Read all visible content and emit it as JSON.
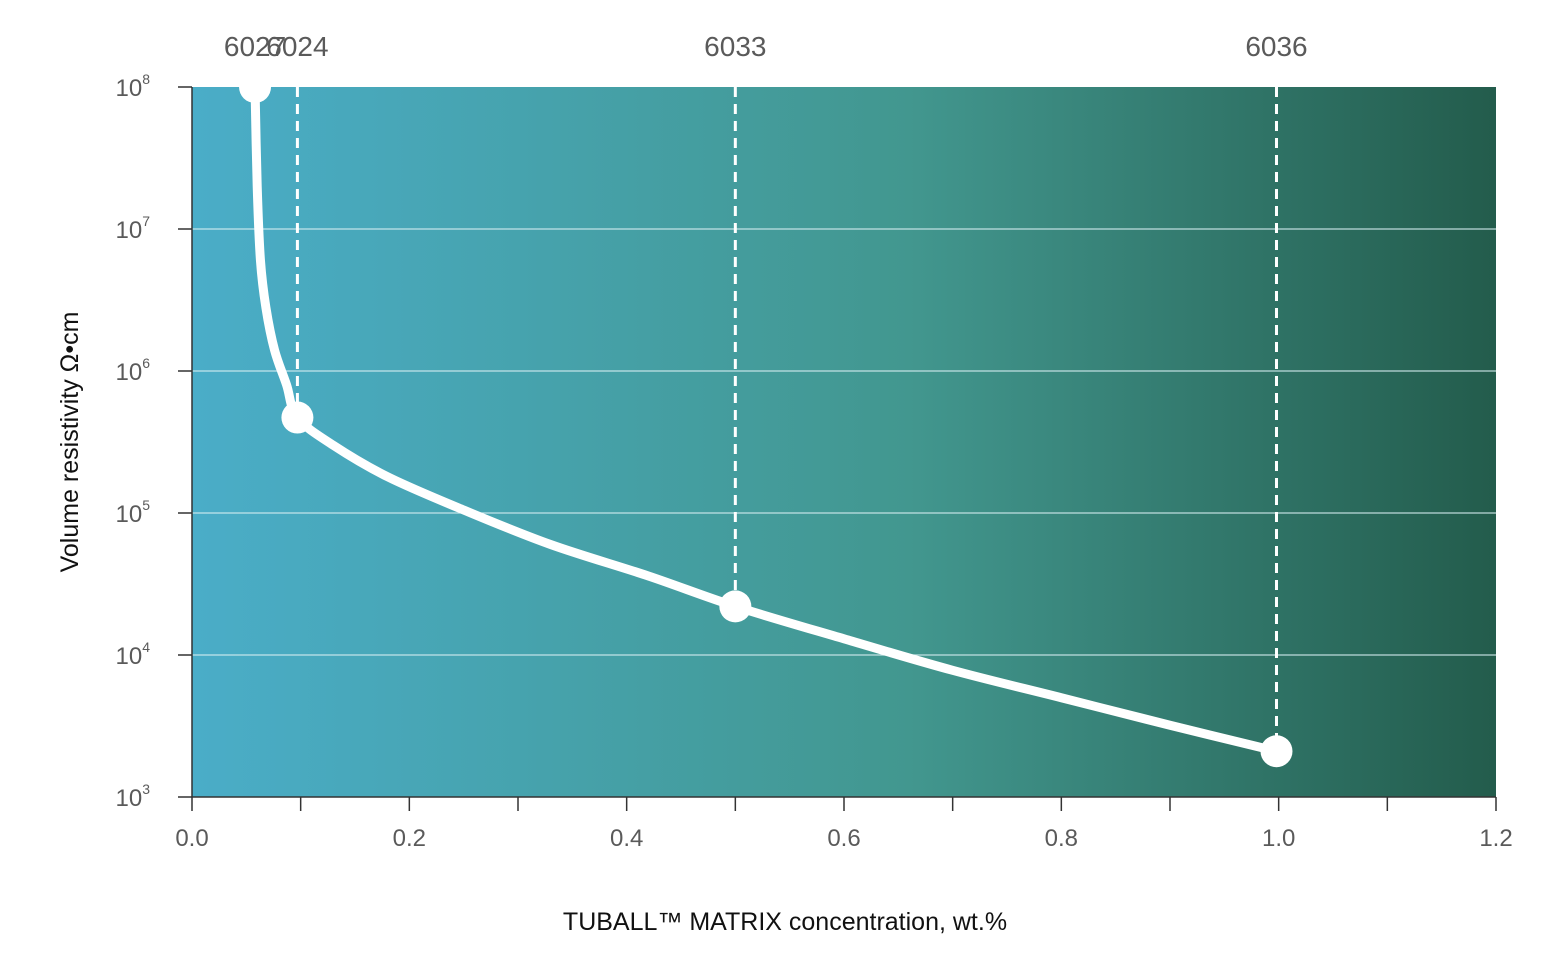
{
  "chart_data": {
    "type": "line",
    "xlabel": "TUBALL™ MATRIX concentration, wt.%",
    "ylabel": "Volume resistivity  Ω•cm",
    "xlim": [
      0,
      1.2
    ],
    "ylim": [
      1000,
      100000000
    ],
    "yscale": "log",
    "x_ticks": [
      "0.0",
      "0.2",
      "0.4",
      "0.6",
      "0.8",
      "1.0",
      "1.2"
    ],
    "x_minor_ticks": [
      0.1,
      0.3,
      0.5,
      0.7,
      0.9,
      1.1
    ],
    "y_ticks": [
      {
        "base": "10",
        "exp": "3",
        "value": 1000
      },
      {
        "base": "10",
        "exp": "4",
        "value": 10000
      },
      {
        "base": "10",
        "exp": "5",
        "value": 100000
      },
      {
        "base": "10",
        "exp": "6",
        "value": 1000000
      },
      {
        "base": "10",
        "exp": "7",
        "value": 10000000
      },
      {
        "base": "10",
        "exp": "8",
        "value": 100000000
      }
    ],
    "grid": "horizontal",
    "points": [
      {
        "label": "6027",
        "x": 0.058,
        "y": 100000000
      },
      {
        "label": "6024",
        "x": 0.097,
        "y": 470000
      },
      {
        "label": "6033",
        "x": 0.5,
        "y": 22000
      },
      {
        "label": "6036",
        "x": 0.998,
        "y": 2100
      }
    ],
    "curve": [
      [
        0.058,
        100000000
      ],
      [
        0.06,
        20000000
      ],
      [
        0.063,
        6000000
      ],
      [
        0.068,
        2800000
      ],
      [
        0.076,
        1400000
      ],
      [
        0.087,
        800000
      ],
      [
        0.097,
        470000
      ],
      [
        0.13,
        300000
      ],
      [
        0.18,
        180000
      ],
      [
        0.25,
        105000
      ],
      [
        0.33,
        60000
      ],
      [
        0.42,
        36000
      ],
      [
        0.5,
        22000
      ],
      [
        0.6,
        13000
      ],
      [
        0.7,
        7800
      ],
      [
        0.8,
        5000
      ],
      [
        0.9,
        3200
      ],
      [
        0.998,
        2100
      ]
    ],
    "colors": {
      "gradient_start": "#4aadc8",
      "gradient_mid": "#42978f",
      "gradient_end": "#235c4c",
      "curve": "#ffffff",
      "grid": "#d8eef2"
    }
  }
}
